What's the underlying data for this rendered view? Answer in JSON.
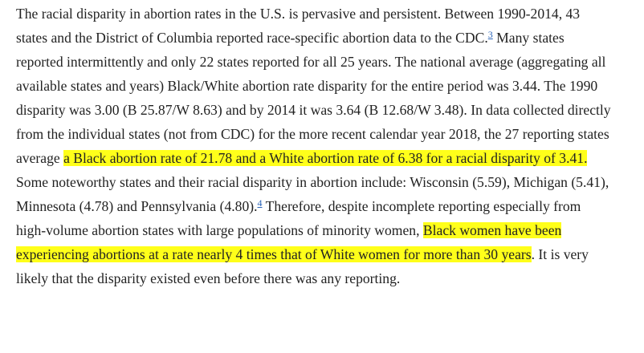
{
  "paragraph": {
    "runs": [
      {
        "text": "The racial disparity in abortion rates in the U.S. is pervasive and persistent. Between 1990-2014, 43 states and the District of Columbia reported race-specific abortion data to the CDC."
      },
      {
        "text": "3",
        "footnote": true
      },
      {
        "text": " Many states reported intermittently and only 22 states reported for all 25 years. The national average (aggregating all available states and years) Black/White abortion rate disparity for the entire period was 3.44. The 1990 disparity was 3.00 (B 25.87/W 8.63) and by 2014 it was 3.64 (B 12.68/W 3.48). In data collected directly from the individual states (not from CDC) for the more recent calendar year 2018, the 27 reporting states average "
      },
      {
        "text": "a Black abortion rate of 21.78 and a White abortion rate of 6.38 for a racial disparity of 3.41.",
        "highlight": true
      },
      {
        "text": " Some noteworthy states and their racial disparity in abortion include: Wisconsin (5.59), Michigan (5.41), Minnesota (4.78) and Pennsylvania (4.80)."
      },
      {
        "text": "4",
        "footnote": true
      },
      {
        "text": " Therefore, despite incomplete reporting especially from high-volume abortion states with large populations of minority women, "
      },
      {
        "text": "Black women have been experiencing abortions at a rate nearly 4 times that of White women for more than 30 years",
        "highlight": true
      },
      {
        "text": ". It is very likely that the disparity existed even before there was any reporting."
      }
    ]
  }
}
